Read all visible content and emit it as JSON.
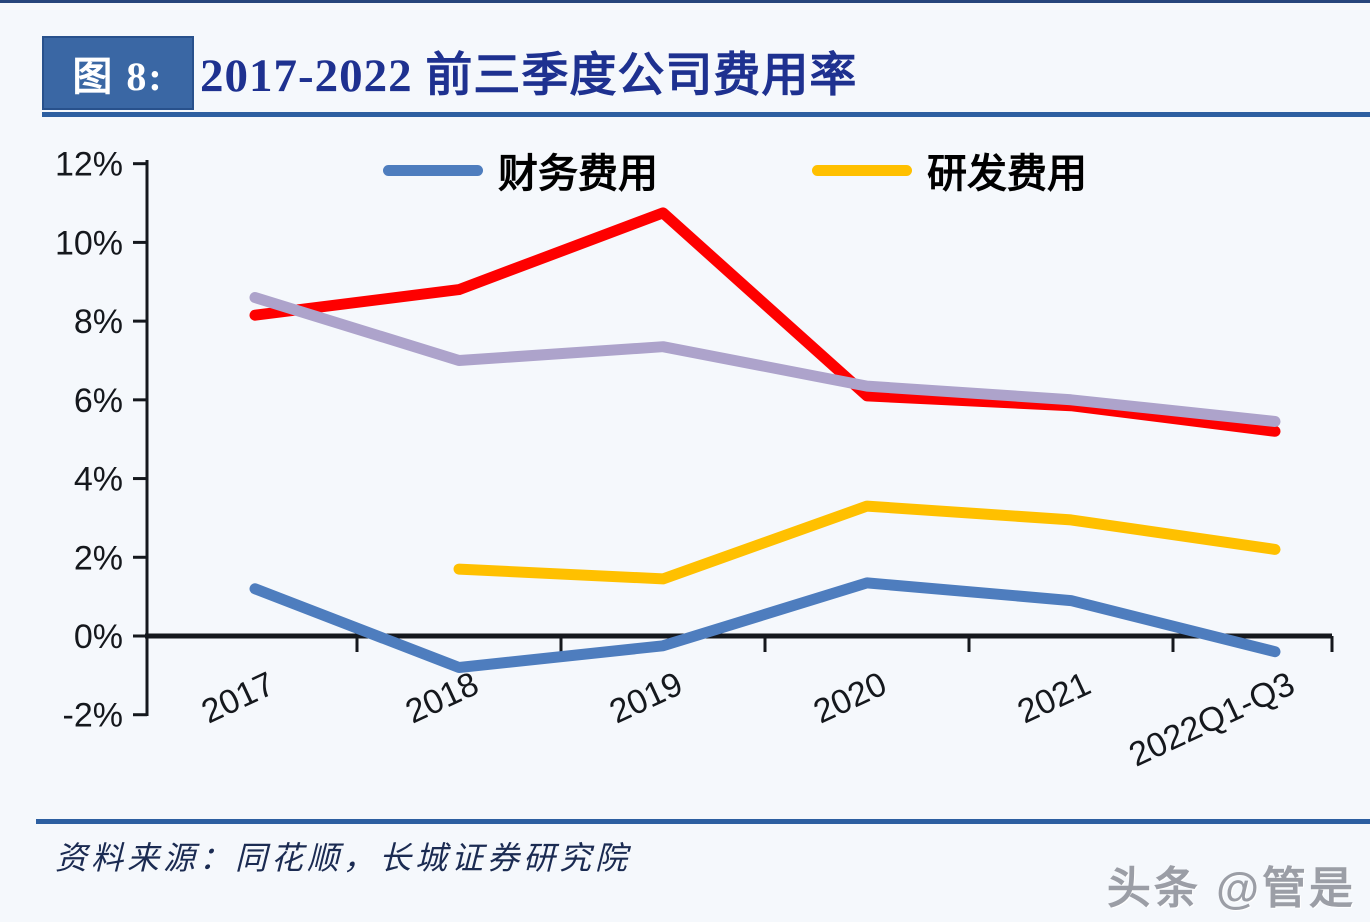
{
  "header": {
    "figure_label": "图 8:",
    "title": "2017-2022 前三季度公司费用率"
  },
  "footer": {
    "source": "资料来源：同花顺，长城证券研究院"
  },
  "watermark": "头条 @管是",
  "chart_data": {
    "type": "line",
    "title": "2017-2022 前三季度公司费用率",
    "xlabel": "",
    "ylabel": "",
    "categories": [
      "2017",
      "2018",
      "2019",
      "2020",
      "2021",
      "2022Q1-Q3"
    ],
    "series": [
      {
        "label": "财务费用",
        "color": "#4E7DBE",
        "values": [
          1.2,
          -0.8,
          -0.25,
          1.35,
          0.9,
          -0.4
        ]
      },
      {
        "label": "研发费用",
        "color": "#FFC000",
        "values": [
          null,
          1.7,
          1.45,
          3.3,
          2.95,
          2.2
        ]
      },
      {
        "label": null,
        "color": "#FE0000",
        "values": [
          8.15,
          8.8,
          10.75,
          6.1,
          5.85,
          5.2
        ]
      },
      {
        "label": null,
        "color": "#ADA3CB",
        "values": [
          8.6,
          7.0,
          7.35,
          6.35,
          6.0,
          5.45
        ]
      }
    ],
    "legend": {
      "position": "top",
      "items": [
        {
          "label": "财务费用",
          "color": "#4E7DBE"
        },
        {
          "label": "研发费用",
          "color": "#FFC000"
        }
      ]
    },
    "y_axis": {
      "ylim": [
        -2,
        12
      ],
      "ticks": [
        {
          "label": "12%",
          "value": 12
        },
        {
          "label": "10%",
          "value": 10
        },
        {
          "label": "8%",
          "value": 8
        },
        {
          "label": "6%",
          "value": 6
        },
        {
          "label": "4%",
          "value": 4
        },
        {
          "label": "2%",
          "value": 2
        },
        {
          "label": "0%",
          "value": 0
        },
        {
          "label": "-2%",
          "value": -2
        }
      ]
    },
    "grid": false,
    "x_tick_style": "between-categories",
    "x_label_rotation_deg": -25
  }
}
